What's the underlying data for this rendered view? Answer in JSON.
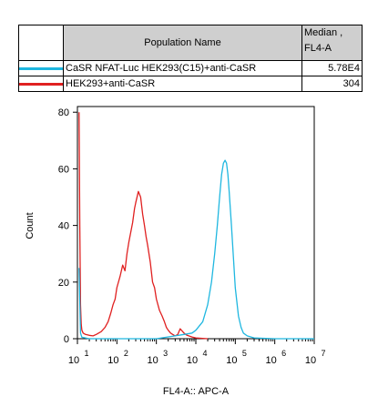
{
  "legend": {
    "header_population": "Population Name",
    "header_median_line1": "Median ,",
    "header_median_line2": "FL4-A",
    "rows": [
      {
        "name": "CaSR NFAT-Luc HEK293(C15)+anti-CaSR",
        "median": "5.78E4",
        "color": "#1fb7e0"
      },
      {
        "name": "HEK293+anti-CaSR",
        "median": "304",
        "color": "#e02020"
      }
    ]
  },
  "chart_data": {
    "type": "line",
    "xlabel": "FL4-A:: APC-A",
    "ylabel": "Count",
    "x_scale": "log",
    "xlim": [
      10,
      10000000
    ],
    "ylim": [
      0,
      82
    ],
    "y_ticks": [
      0,
      20,
      40,
      60,
      80
    ],
    "x_ticks": [
      {
        "base": "10",
        "exp": "1"
      },
      {
        "base": "10",
        "exp": "2"
      },
      {
        "base": "10",
        "exp": "3"
      },
      {
        "base": "10",
        "exp": "4"
      },
      {
        "base": "10",
        "exp": "5"
      },
      {
        "base": "10",
        "exp": "6"
      },
      {
        "base": "10",
        "exp": "7"
      }
    ],
    "series": [
      {
        "name": "HEK293+anti-CaSR",
        "color": "#e02020",
        "x": [
          11,
          11.5,
          12,
          12.5,
          13,
          14,
          16,
          20,
          25,
          30,
          40,
          50,
          60,
          70,
          80,
          90,
          100,
          120,
          140,
          160,
          180,
          200,
          220,
          250,
          280,
          300,
          350,
          400,
          450,
          500,
          550,
          600,
          700,
          800,
          900,
          1000,
          1200,
          1400,
          1600,
          1800,
          2000,
          2300,
          2600,
          3000,
          3500,
          4000,
          5000,
          6000,
          8000,
          10000,
          20000
        ],
        "y": [
          80,
          40,
          12,
          5,
          3,
          2,
          1.5,
          1.2,
          1,
          1.5,
          2.5,
          4,
          6,
          9,
          12,
          14,
          18,
          22,
          26,
          24,
          30,
          34,
          37,
          41,
          46,
          48,
          52,
          50,
          44,
          40,
          36,
          33,
          27,
          20,
          18,
          14,
          10,
          8,
          6,
          4,
          3,
          2,
          1.5,
          1,
          1.5,
          3.5,
          2,
          1.2,
          0.6,
          0.3,
          0
        ]
      },
      {
        "name": "CaSR NFAT-Luc HEK293(C15)+anti-CaSR",
        "color": "#1fb7e0",
        "x": [
          11,
          12,
          13,
          20,
          100,
          1000,
          3000,
          5000,
          8000,
          10000,
          15000,
          20000,
          25000,
          30000,
          35000,
          40000,
          45000,
          50000,
          55000,
          60000,
          65000,
          70000,
          80000,
          90000,
          100000,
          120000,
          140000,
          160000,
          200000,
          300000,
          1000000,
          10000000
        ],
        "y": [
          25,
          2,
          0.5,
          0,
          0,
          0,
          1,
          1.5,
          2,
          3,
          6,
          12,
          20,
          30,
          40,
          50,
          58,
          62,
          63,
          62,
          58,
          52,
          40,
          28,
          18,
          8,
          4,
          2,
          1,
          0.3,
          0,
          0
        ]
      }
    ]
  }
}
